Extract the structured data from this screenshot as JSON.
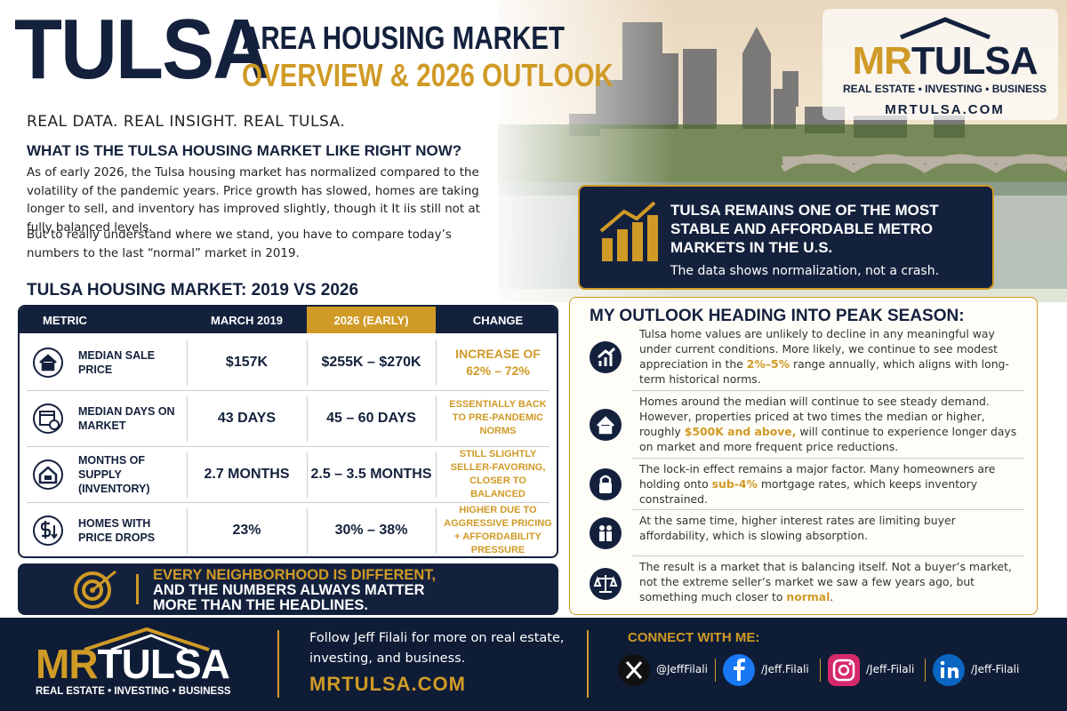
{
  "header": {
    "title": "TULSA",
    "subtitle_line1": "AREA HOUSING MARKET",
    "subtitle_line2": "OVERVIEW & 2026 OUTLOOK",
    "tagline": "REAL DATA. REAL INSIGHT. REAL TULSA."
  },
  "logo": {
    "mr": "MR",
    "tulsa": "TULSA",
    "tagline": "REAL ESTATE • INVESTING • BUSINESS",
    "url": "MRTULSA.COM"
  },
  "intro": {
    "heading": "WHAT IS THE TULSA HOUSING MARKET LIKE RIGHT NOW?",
    "paragraphs": [
      "As of early 2026, the Tulsa housing market has normalized compared to the volatility of the pandemic years. Price growth has slowed, homes are taking longer to sell, and inventory has improved slightly, though it It iis still not at fully balanced levels.",
      "But to really understand where we stand, you have to compare today’s numbers to the last “normal” market in 2019."
    ]
  },
  "callout": {
    "headline": "TULSA REMAINS ONE OF THE MOST STABLE AND AFFORDABLE METRO MARKETS IN THE U.S.",
    "subtext": "The data shows normalization, not a crash."
  },
  "table": {
    "title": "TULSA HOUSING MARKET: 2019 VS 2026",
    "columns": [
      "METRIC",
      "MARCH 2019",
      "2026 (EARLY)",
      "CHANGE"
    ],
    "rows": [
      [
        "MEDIAN SALE PRICE",
        "$157K",
        "$255K – $270K",
        "INCREASE OF 62% – 72%"
      ],
      [
        "MEDIAN DAYS ON MARKET",
        "43 DAYS",
        "45 – 60 DAYS",
        "ESSENTIALLY BACK TO PRE-PANDEMIC NORMS"
      ],
      [
        "MONTHS OF SUPPLY (INVENTORY)",
        "2.7 MONTHS",
        "2.5 – 3.5 MONTHS",
        "STILL SLIGHTLY SELLER-FAVORING, CLOSER TO BALANCED"
      ],
      [
        "HOMES WITH PRICE DROPS",
        "23%",
        "30% – 38%",
        "HIGHER DUE TO AGGRESSIVE PRICING + AFFORDABILITY PRESSURE"
      ]
    ]
  },
  "banner": {
    "line1": "EVERY NEIGHBORHOOD IS DIFFERENT,",
    "line2": "AND THE NUMBERS ALWAYS MATTER MORE THAN THE HEADLINES."
  },
  "outlook": {
    "heading": "MY OUTLOOK HEADING INTO PEAK SEASON:",
    "items": [
      [
        {
          "text": "Tulsa home values are unlikely to decline in any meaningful way under current conditions. More likely, we continue to see modest appreciation in the ",
          "highlight": false
        },
        {
          "text": "2%–5%",
          "highlight": true
        },
        {
          "text": " range annually, which aligns with long-term historical norms.",
          "highlight": false
        }
      ],
      [
        {
          "text": "Homes around the median will continue to see steady demand. However, properties priced at two times the median or higher, roughly ",
          "highlight": false
        },
        {
          "text": "$500K and above,",
          "highlight": true
        },
        {
          "text": " will continue to experience longer days on market and more frequent price reductions.",
          "highlight": false
        }
      ],
      [
        {
          "text": "The lock-in effect remains a major factor. Many homeowners are holding onto ",
          "highlight": false
        },
        {
          "text": "sub-4%",
          "highlight": true
        },
        {
          "text": " mortgage rates, which keeps inventory constrained.",
          "highlight": false
        }
      ],
      [
        {
          "text": "At the same time, higher interest rates are limiting buyer affordability, which is slowing absorption.",
          "highlight": false
        }
      ],
      [
        {
          "text": "The result is a market that is balancing itself. Not a buyer’s market, not the extreme seller’s market we saw a few years ago, but something much closer to ",
          "highlight": false
        },
        {
          "text": "normal",
          "highlight": true
        },
        {
          "text": ".",
          "highlight": false
        }
      ]
    ]
  },
  "footer": {
    "follow": "Follow Jeff Filali for more on real estate, investing, and business.",
    "url": "MRTULSA.COM",
    "connect": "CONNECT WITH ME:",
    "socials": [
      "@JeffFilali",
      "/Jeff.Filali",
      "/Jeff-Filali",
      "/Jeff-Filali"
    ]
  }
}
